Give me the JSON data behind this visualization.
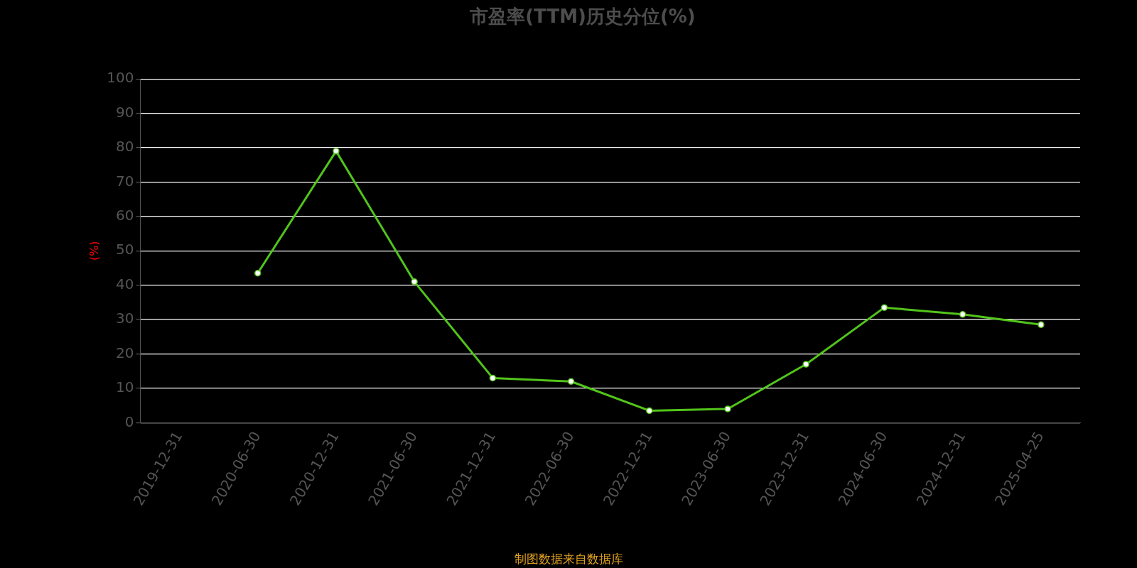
{
  "chart_data": {
    "type": "line",
    "title": "市盈率(TTM)历史分位(%)",
    "ylabel": "(%)",
    "categories": [
      "2019-12-31",
      "2020-06-30",
      "2020-12-31",
      "2021-06-30",
      "2021-12-31",
      "2022-06-30",
      "2022-12-31",
      "2023-06-30",
      "2023-12-31",
      "2024-06-30",
      "2024-12-31",
      "2025-04-25"
    ],
    "series": [
      {
        "color": "#52c41a",
        "values": [
          null,
          43.5,
          79,
          41,
          13,
          12,
          3.5,
          4,
          17,
          33.5,
          31.5,
          28.5
        ]
      }
    ],
    "ylim": [
      0,
      100
    ],
    "yticks": [
      0,
      10,
      20,
      30,
      40,
      50,
      60,
      70,
      80,
      90,
      100
    ],
    "grid": "y",
    "legend": false,
    "marker": "circle",
    "line_style": "solid",
    "annotations": [
      "制图数据来自数据库"
    ]
  }
}
